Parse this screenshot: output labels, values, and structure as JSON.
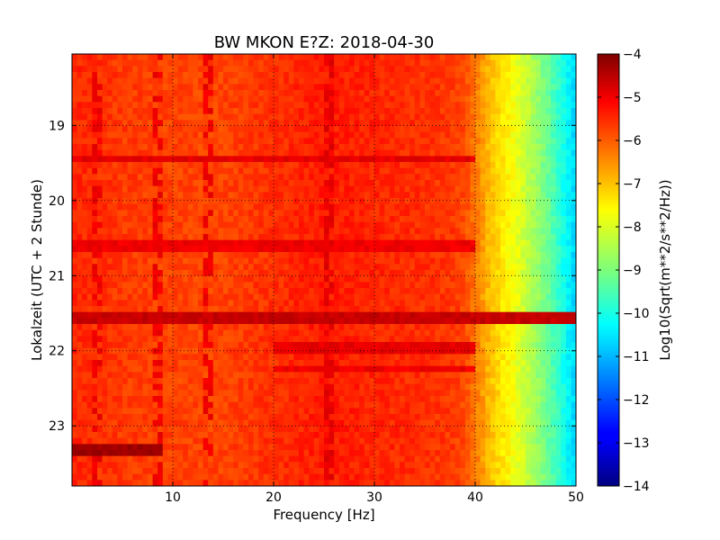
{
  "chart_data": {
    "type": "heatmap",
    "title": "BW MKON E?Z: 2018-04-30",
    "xlabel": "Frequency [Hz]",
    "ylabel": "Lokalzeit (UTC + 2 Stunde)",
    "xlim": [
      0,
      50
    ],
    "ylim": [
      18.05,
      23.8
    ],
    "y_inverted": true,
    "x_ticks": [
      10,
      20,
      30,
      40,
      50
    ],
    "x_tick_labels": [
      "10",
      "20",
      "30",
      "40",
      "50"
    ],
    "y_ticks": [
      19,
      20,
      21,
      22,
      23
    ],
    "y_tick_labels": [
      "19",
      "20",
      "21",
      "22",
      "23"
    ],
    "grid": true,
    "colormap": "jet",
    "colorbar": {
      "label": "Log10(Sqrt(m**2/s**2/Hz))",
      "range": [
        -14,
        -4
      ],
      "ticks": [
        -4,
        -5,
        -6,
        -7,
        -8,
        -9,
        -10,
        -11,
        -12,
        -13,
        -14
      ],
      "tick_labels": [
        "−4",
        "−5",
        "−6",
        "−7",
        "−8",
        "−9",
        "−10",
        "−11",
        "−12",
        "−13",
        "−14"
      ]
    },
    "spectrum_profile": {
      "frequency_hz": [
        0,
        5,
        10,
        15,
        20,
        25,
        30,
        35,
        38,
        39,
        40,
        41,
        42,
        43,
        44,
        45,
        46,
        47,
        48,
        49,
        50
      ],
      "log_amplitude": [
        -5.6,
        -5.8,
        -5.9,
        -5.9,
        -5.7,
        -5.5,
        -5.6,
        -5.7,
        -5.8,
        -6.0,
        -6.4,
        -6.9,
        -7.3,
        -7.6,
        -7.9,
        -8.3,
        -8.7,
        -9.1,
        -9.6,
        -10.2,
        -10.7
      ]
    },
    "time_bands": [
      {
        "time": 19.45,
        "f_min": 0,
        "f_max": 40,
        "log_amplitude": -5.0
      },
      {
        "time": 20.6,
        "f_min": 0,
        "f_max": 40,
        "log_amplitude": -5.1
      },
      {
        "time": 21.55,
        "f_min": 0,
        "f_max": 50,
        "log_amplitude": -4.7
      },
      {
        "time": 21.95,
        "f_min": 20,
        "f_max": 40,
        "log_amplitude": -5.0
      },
      {
        "time": 22.25,
        "f_min": 20,
        "f_max": 40,
        "log_amplitude": -5.1
      },
      {
        "time": 23.33,
        "f_min": 0,
        "f_max": 9,
        "log_amplitude": -4.3
      }
    ],
    "frequency_lines": [
      {
        "frequency": 2.5,
        "log_amplitude": -5.1
      },
      {
        "frequency": 8.5,
        "log_amplitude": -5.1
      },
      {
        "frequency": 13.5,
        "log_amplitude": -5.1
      },
      {
        "frequency": 25.5,
        "log_amplitude": -5.0
      }
    ]
  }
}
